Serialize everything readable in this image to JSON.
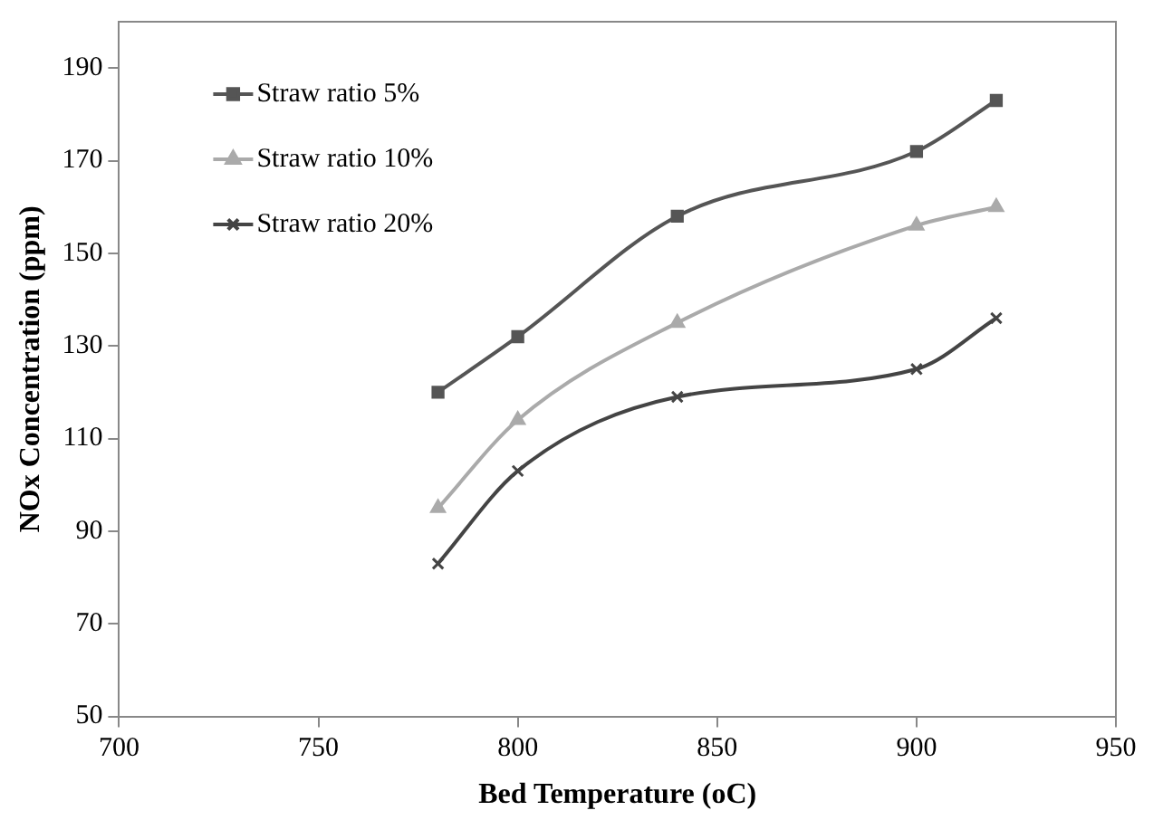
{
  "chart_data": {
    "type": "line",
    "xlabel": "Bed Temperature (oC)",
    "ylabel": "NOx Concentration (ppm)",
    "x": [
      780,
      800,
      840,
      900,
      920
    ],
    "series": [
      {
        "name": "Straw ratio 5%",
        "color": "#555555",
        "marker": "square",
        "values": [
          120,
          132,
          158,
          172,
          183
        ]
      },
      {
        "name": "Straw ratio 10%",
        "color": "#aaaaaa",
        "marker": "triangle",
        "values": [
          95,
          114,
          135,
          156,
          160
        ]
      },
      {
        "name": "Straw ratio 20%",
        "color": "#444444",
        "marker": "cross",
        "values": [
          83,
          103,
          119,
          125,
          136
        ]
      }
    ],
    "xlim": [
      700,
      950
    ],
    "xticks": [
      700,
      750,
      800,
      850,
      900,
      950
    ],
    "ylim": [
      50,
      200
    ],
    "yticks": [
      50,
      70,
      90,
      110,
      130,
      150,
      170,
      190
    ],
    "grid": false,
    "legend": "top left"
  }
}
